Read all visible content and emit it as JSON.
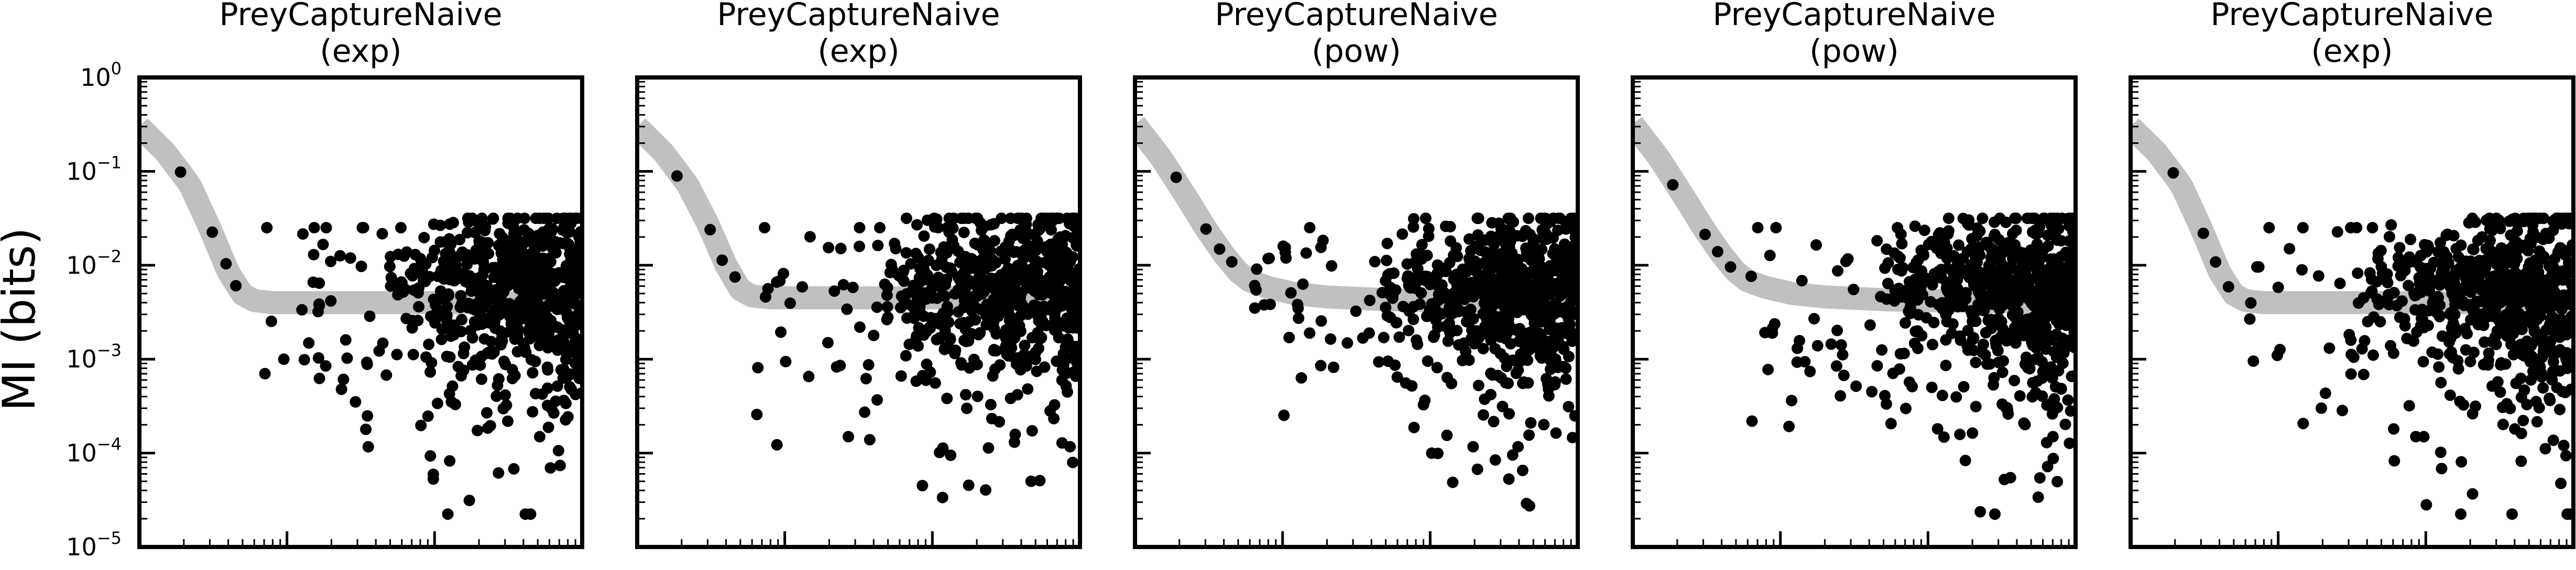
{
  "figure": {
    "ylabel": "MI (bits)",
    "yscale": "log",
    "ylim": [
      1e-05,
      1
    ],
    "ytick_labels": [
      {
        "value": 1,
        "base": "10",
        "exp": "0"
      },
      {
        "value": 0.1,
        "base": "10",
        "exp": "−1"
      },
      {
        "value": 0.01,
        "base": "10",
        "exp": "−2"
      },
      {
        "value": 0.001,
        "base": "10",
        "exp": "−3"
      },
      {
        "value": 0.0001,
        "base": "10",
        "exp": "−4"
      },
      {
        "value": 1e-05,
        "base": "10",
        "exp": "−5"
      }
    ],
    "xscale": "log",
    "xlim": [
      1,
      1000
    ],
    "xtick_labels_shown": false,
    "band_color": "#c0c0c0",
    "point_color": "#000000"
  },
  "panels": [
    {
      "title": "PreyCaptureNaive",
      "subtitle": "(exp)"
    },
    {
      "title": "PreyCaptureNaive",
      "subtitle": "(exp)"
    },
    {
      "title": "PreyCaptureNaive",
      "subtitle": "(pow)"
    },
    {
      "title": "PreyCaptureNaive",
      "subtitle": "(pow)"
    },
    {
      "title": "PreyCaptureNaive",
      "subtitle": "(exp)"
    }
  ],
  "chart_data": [
    {
      "type": "scatter",
      "title": "PreyCaptureNaive (exp)",
      "ylabel": "MI (bits)",
      "xscale": "log",
      "yscale": "log",
      "xlim": [
        1,
        1000
      ],
      "ylim": [
        1e-05,
        1
      ],
      "band": {
        "x": [
          1,
          1.5,
          2.2,
          3,
          4,
          5,
          6,
          8,
          12,
          20,
          50,
          100,
          300,
          1000
        ],
        "y": [
          0.3,
          0.16,
          0.072,
          0.025,
          0.0085,
          0.0049,
          0.0042,
          0.004,
          0.004,
          0.004,
          0.004,
          0.004,
          0.004,
          0.004
        ]
      },
      "points_described": "single-cell MI estimates; sparse at small x, dense cloud from x≈50 to 1000 spanning ~3e-5 to 3e-2 bits",
      "seed": 11
    },
    {
      "type": "scatter",
      "title": "PreyCaptureNaive (exp)",
      "ylabel": "MI (bits)",
      "xscale": "log",
      "yscale": "log",
      "xlim": [
        1,
        1000
      ],
      "ylim": [
        1e-05,
        1
      ],
      "band": {
        "x": [
          1,
          1.5,
          2.2,
          3,
          4,
          5,
          6,
          8,
          12,
          20,
          50,
          100,
          300,
          1000
        ],
        "y": [
          0.3,
          0.16,
          0.072,
          0.028,
          0.01,
          0.0055,
          0.0047,
          0.0045,
          0.0045,
          0.0045,
          0.0045,
          0.0045,
          0.0045,
          0.0045
        ]
      },
      "points_described": "single-cell MI estimates; sparse at small x, dense cloud from x≈50 to 1000 spanning ~4e-5 to 3e-2 bits",
      "seed": 23
    },
    {
      "type": "scatter",
      "title": "PreyCaptureNaive (pow)",
      "ylabel": "MI (bits)",
      "xscale": "log",
      "yscale": "log",
      "xlim": [
        1,
        1000
      ],
      "ylim": [
        1e-05,
        1
      ],
      "band": {
        "x": [
          1,
          1.5,
          2.2,
          3,
          4,
          5,
          6,
          8,
          12,
          20,
          50,
          100,
          300,
          1000
        ],
        "y": [
          0.32,
          0.14,
          0.055,
          0.025,
          0.013,
          0.0085,
          0.0068,
          0.0058,
          0.005,
          0.0046,
          0.0043,
          0.0042,
          0.0041,
          0.004
        ]
      },
      "points_described": "single-cell MI estimates; sparse at small x, dense cloud from x≈50 to 1000 spanning ~4e-5 to 3e-2 bits",
      "seed": 37
    },
    {
      "type": "scatter",
      "title": "PreyCaptureNaive (pow)",
      "ylabel": "MI (bits)",
      "xscale": "log",
      "yscale": "log",
      "xlim": [
        1,
        1000
      ],
      "ylim": [
        1e-05,
        1
      ],
      "band": {
        "x": [
          1,
          1.5,
          2.2,
          3,
          4,
          5,
          6,
          8,
          12,
          20,
          50,
          100,
          300,
          1000
        ],
        "y": [
          0.32,
          0.14,
          0.055,
          0.025,
          0.013,
          0.0085,
          0.0068,
          0.0058,
          0.005,
          0.0046,
          0.0043,
          0.0042,
          0.0041,
          0.004
        ]
      },
      "points_described": "single-cell MI estimates; sparse at small x, dense cloud from x≈50 to 1000 spanning ~5e-5 to 3e-2 bits",
      "seed": 51
    },
    {
      "type": "scatter",
      "title": "PreyCaptureNaive (exp)",
      "ylabel": "MI (bits)",
      "xscale": "log",
      "yscale": "log",
      "xlim": [
        1,
        1000
      ],
      "ylim": [
        1e-05,
        1
      ],
      "band": {
        "x": [
          1,
          1.5,
          2.2,
          3,
          4,
          5,
          6,
          8,
          12,
          20,
          50,
          100,
          300,
          1000
        ],
        "y": [
          0.3,
          0.16,
          0.072,
          0.025,
          0.0085,
          0.0049,
          0.0042,
          0.004,
          0.004,
          0.004,
          0.004,
          0.004,
          0.004,
          0.004
        ]
      },
      "points_described": "single-cell MI estimates; sparse at small x, dense cloud from x≈50 to 1000 spanning ~2e-5 to 3e-2 bits",
      "seed": 67
    }
  ]
}
